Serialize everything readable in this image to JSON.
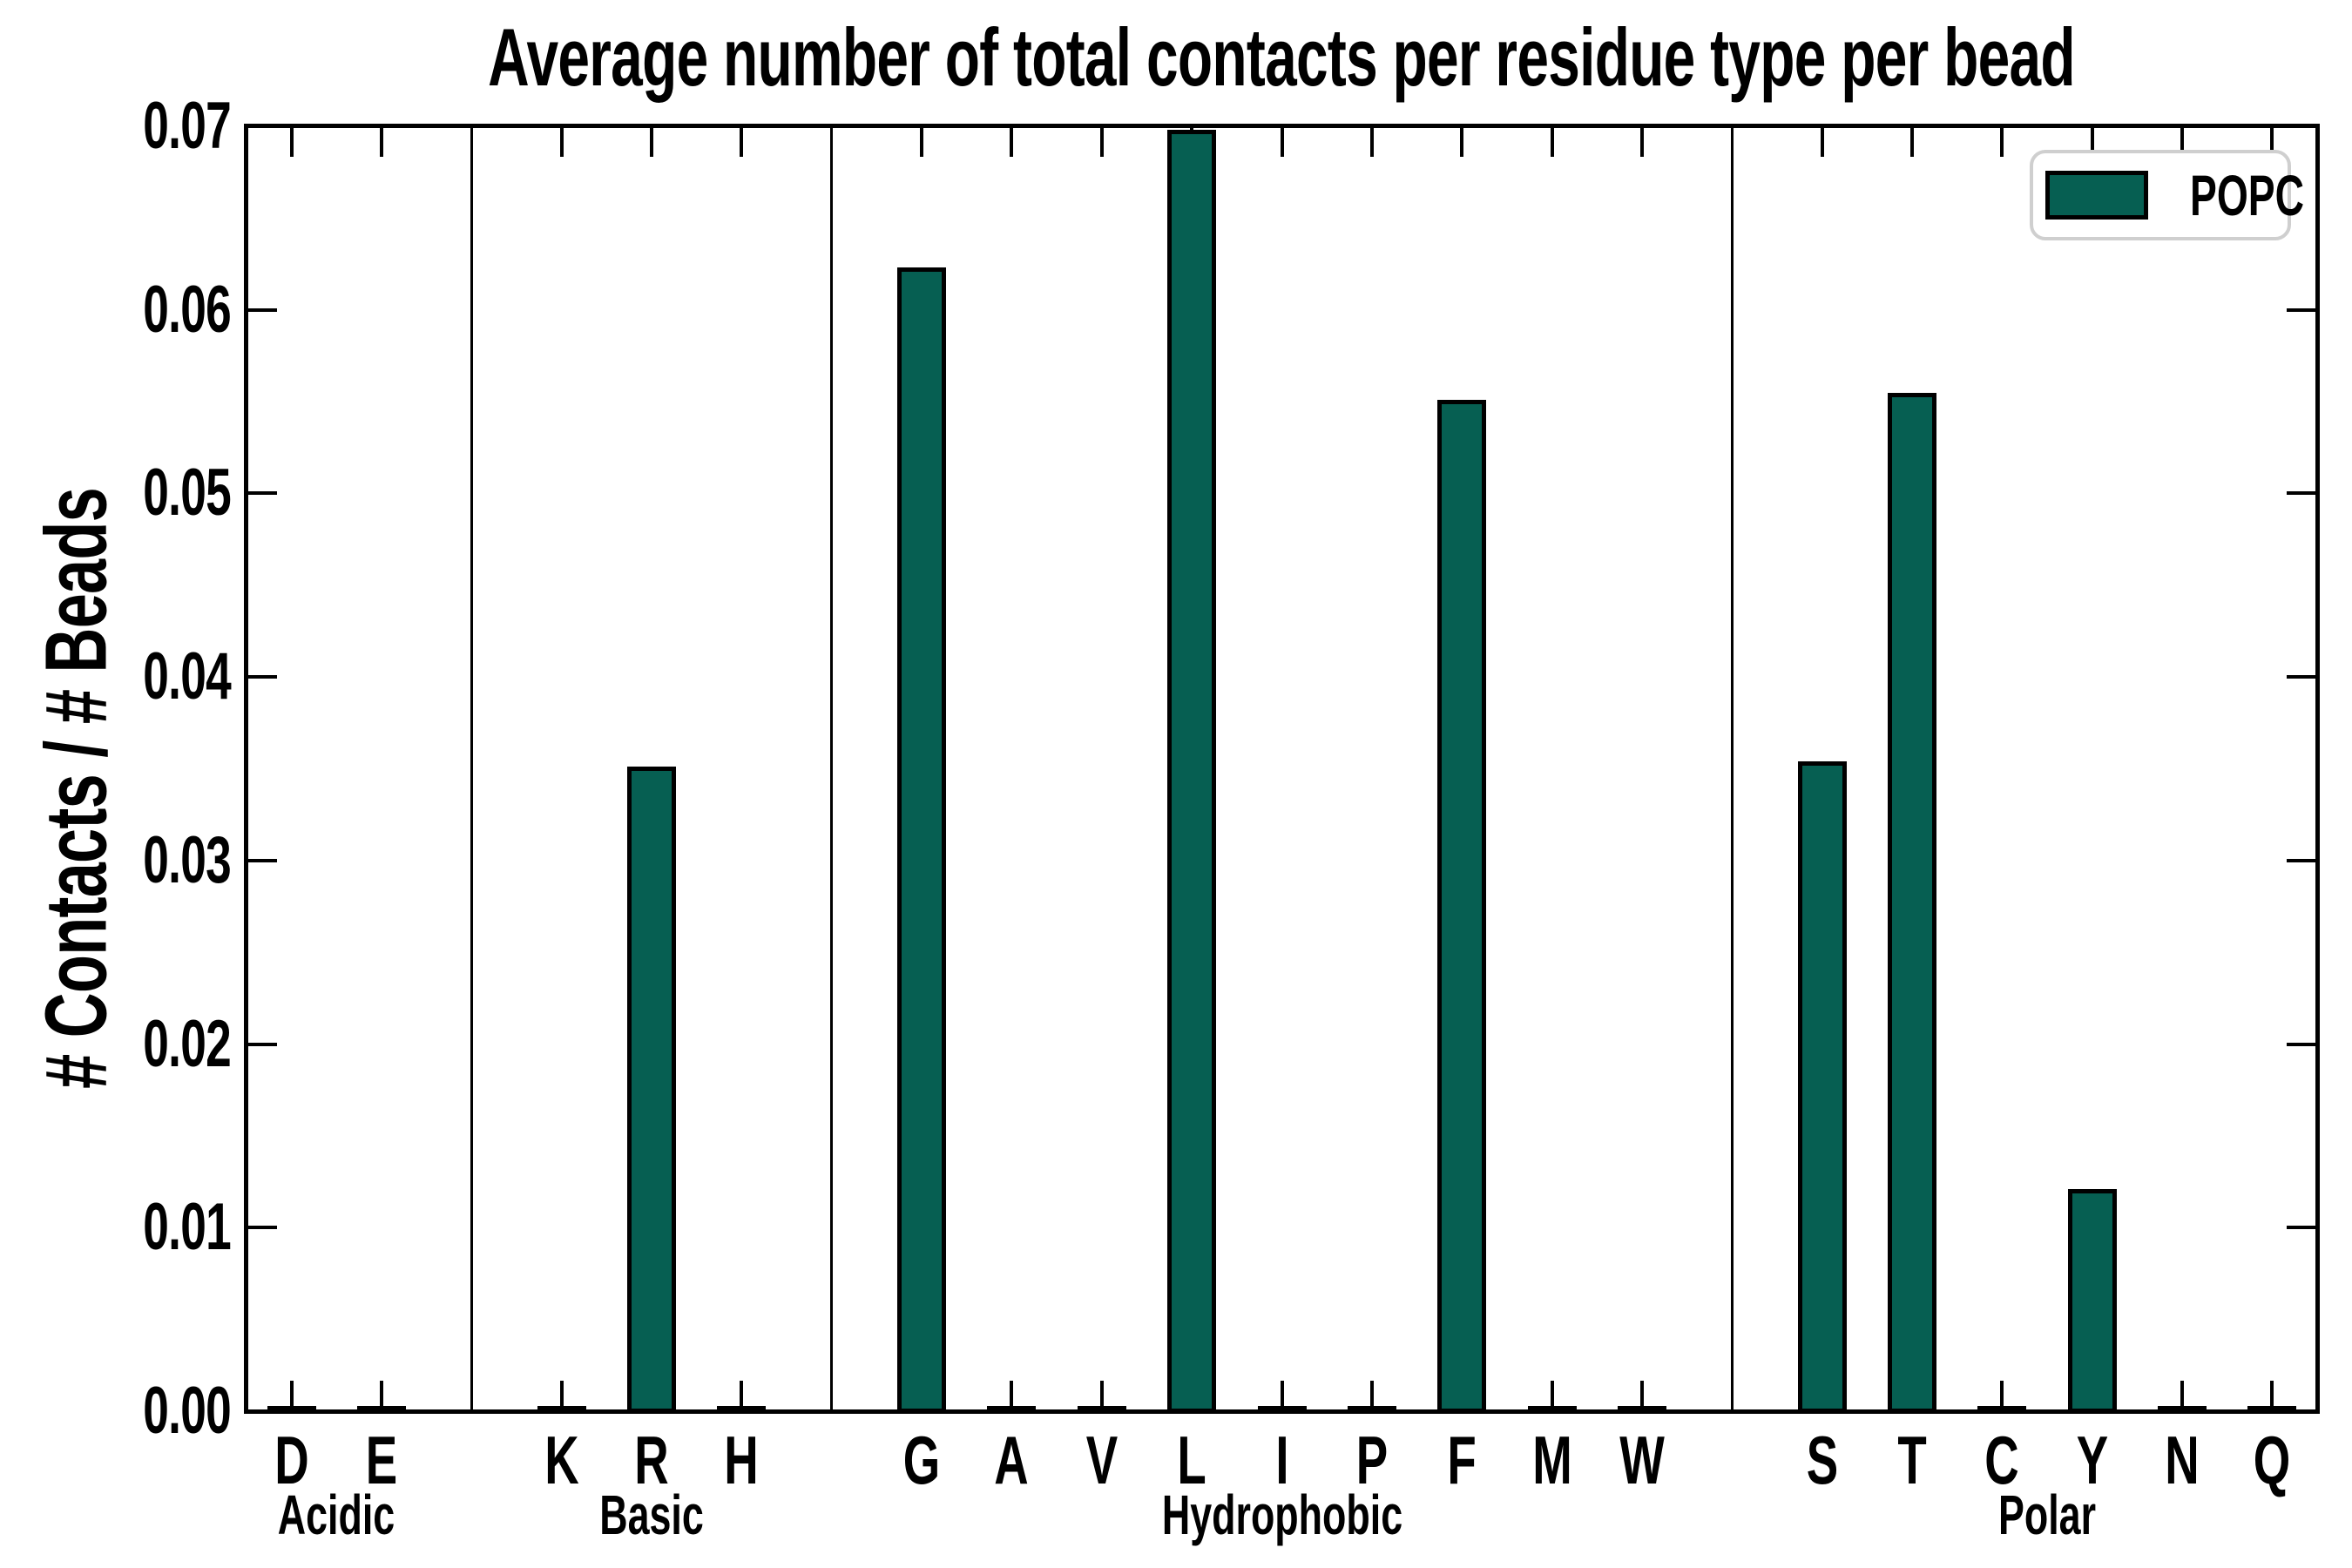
{
  "chart_data": {
    "type": "bar",
    "title": "Average number of total contacts per residue type per bead",
    "xlabel": "",
    "ylabel": "# Contacts / # Beads",
    "ylim": [
      0,
      0.07
    ],
    "ytick_labels": [
      "0.00",
      "0.01",
      "0.02",
      "0.03",
      "0.04",
      "0.05",
      "0.06",
      "0.07"
    ],
    "grid": false,
    "categories": [
      "D",
      "E",
      "K",
      "R",
      "H",
      "G",
      "A",
      "V",
      "L",
      "I",
      "P",
      "F",
      "M",
      "W",
      "S",
      "T",
      "C",
      "Y",
      "N",
      "Q"
    ],
    "series": [
      {
        "name": "POPC",
        "values": [
          0,
          0,
          0,
          0.0351,
          0,
          0.0623,
          0,
          0,
          0.0698,
          0,
          0,
          0.0551,
          0,
          0,
          0.0354,
          0.0555,
          0,
          0.0121,
          0,
          0
        ]
      }
    ],
    "groups": [
      {
        "label": "Acidic",
        "count": 2
      },
      {
        "label": "Basic",
        "count": 3
      },
      {
        "label": "Hydrophobic",
        "count": 9
      },
      {
        "label": "Polar",
        "count": 6
      }
    ],
    "legend": {
      "position": "upper right",
      "label": "POPC"
    },
    "colors": {
      "bar_fill": "#065F52",
      "bar_edge": "#000000",
      "axis": "#000000",
      "legend_border": "#CFCFCF",
      "background": "#FFFFFF"
    }
  }
}
